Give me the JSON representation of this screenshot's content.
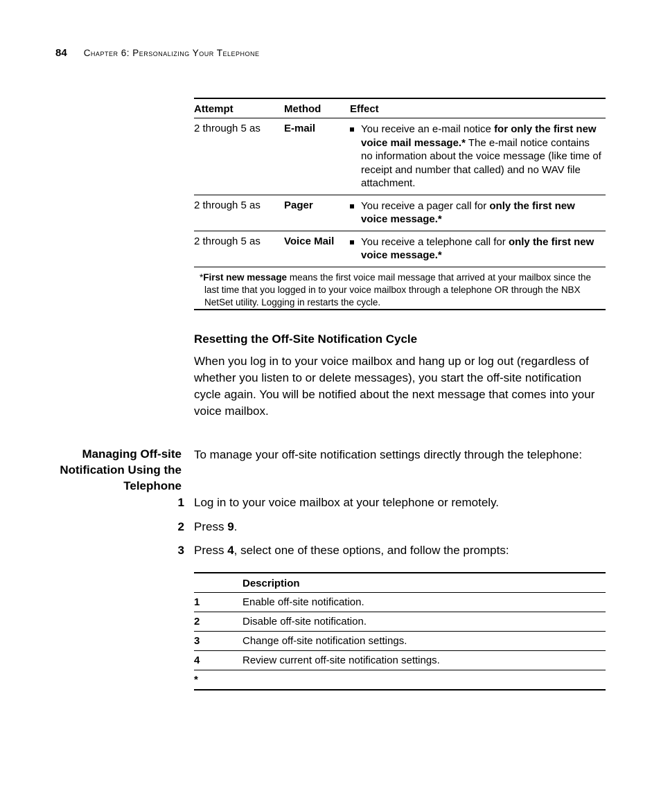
{
  "header": {
    "page_number": "84",
    "chapter": "Chapter 6: Personalizing Your Telephone"
  },
  "table1": {
    "columns": {
      "attempt": "Attempt",
      "method": "Method",
      "effect": "Effect"
    },
    "rows": [
      {
        "attempt": "2 through 5 as",
        "method": "E-mail",
        "effect_pre": "You receive an e-mail notice ",
        "effect_bold": "for only the first new voice mail message.*",
        "effect_post": " The e-mail notice contains no information about the voice message (like time of receipt and number that called) and no WAV file attachment."
      },
      {
        "attempt": "2 through 5 as",
        "method": "Pager",
        "effect_pre": "You receive a pager call for ",
        "effect_bold": "only the first new voice message.*",
        "effect_post": ""
      },
      {
        "attempt": "2 through 5 as",
        "method": "Voice Mail",
        "effect_pre": "You receive a telephone call for ",
        "effect_bold": "only the first new voice message.*",
        "effect_post": ""
      }
    ],
    "footnote_star": "*",
    "footnote_bold": "First new message",
    "footnote_rest": " means the first voice mail message that arrived at your mailbox since the last time that you logged in to your voice mailbox through a telephone OR through the NBX NetSet utility. Logging in restarts the cycle."
  },
  "section1": {
    "heading": "Resetting the Off-Site Notification Cycle",
    "body": "When you log in to your voice mailbox and hang up or log out (regardless of whether you listen to or delete messages), you start the off-site notification cycle again. You will be notified about the next message that comes into your voice mailbox."
  },
  "section2": {
    "sidehead": "Managing Off-site Notification Using the Telephone",
    "intro": "To manage your off-site notification settings directly through the telephone:",
    "steps": [
      {
        "n": "1",
        "pre": "Log in to your voice mailbox at your telephone or remotely.",
        "bold": "",
        "post": ""
      },
      {
        "n": "2",
        "pre": "Press ",
        "bold": "9",
        "post": "."
      },
      {
        "n": "3",
        "pre": "Press ",
        "bold": "4",
        "post": ", select one of these options, and follow the prompts:"
      }
    ]
  },
  "table2": {
    "columns": {
      "key": "",
      "desc": "Description"
    },
    "rows": [
      {
        "key": "1",
        "desc": "Enable off-site notification."
      },
      {
        "key": "2",
        "desc": "Disable off-site notification."
      },
      {
        "key": "3",
        "desc": "Change off-site notification settings."
      },
      {
        "key": "4",
        "desc": "Review current off-site notification settings."
      },
      {
        "key": "*",
        "desc": ""
      }
    ]
  }
}
